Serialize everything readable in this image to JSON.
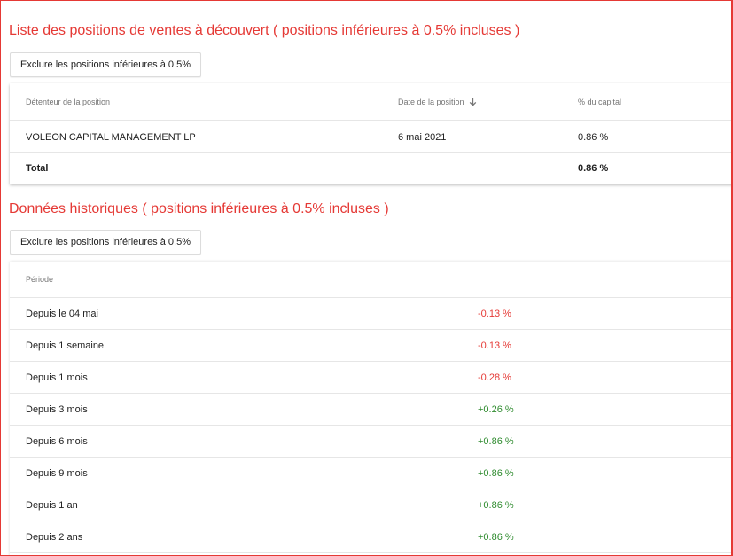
{
  "short_positions": {
    "title": "Liste des positions de ventes à découvert ( positions inférieures à 0.5% incluses )",
    "exclude_button": "Exclure les positions inférieures à 0.5%",
    "columns": {
      "holder": "Détenteur de la position",
      "date": "Date de la position",
      "capital": "% du capital"
    },
    "sort_icon": "arrow-down-icon",
    "rows": [
      {
        "holder": "VOLEON CAPITAL MANAGEMENT LP",
        "date": "6 mai 2021",
        "capital": "0.86 %"
      }
    ],
    "total": {
      "label": "Total",
      "capital": "0.86 %"
    }
  },
  "historical": {
    "title": "Données historiques ( positions inférieures à 0.5% incluses )",
    "exclude_button": "Exclure les positions inférieures à 0.5%",
    "columns": {
      "period": "Période"
    },
    "rows": [
      {
        "period": "Depuis le 04 mai",
        "change": "-0.13 %",
        "trend": "negative"
      },
      {
        "period": "Depuis 1 semaine",
        "change": "-0.13 %",
        "trend": "negative"
      },
      {
        "period": "Depuis 1 mois",
        "change": "-0.28 %",
        "trend": "negative"
      },
      {
        "period": "Depuis 3 mois",
        "change": "+0.26 %",
        "trend": "positive"
      },
      {
        "period": "Depuis 6 mois",
        "change": "+0.86 %",
        "trend": "positive"
      },
      {
        "period": "Depuis 9 mois",
        "change": "+0.86 %",
        "trend": "positive"
      },
      {
        "period": "Depuis 1 an",
        "change": "+0.86 %",
        "trend": "positive"
      },
      {
        "period": "Depuis 2 ans",
        "change": "+0.86 %",
        "trend": "positive"
      }
    ]
  },
  "colors": {
    "title": "#e53935",
    "negative": "#e53935",
    "positive": "#2e8b2e",
    "frame_border": "#e53935"
  }
}
